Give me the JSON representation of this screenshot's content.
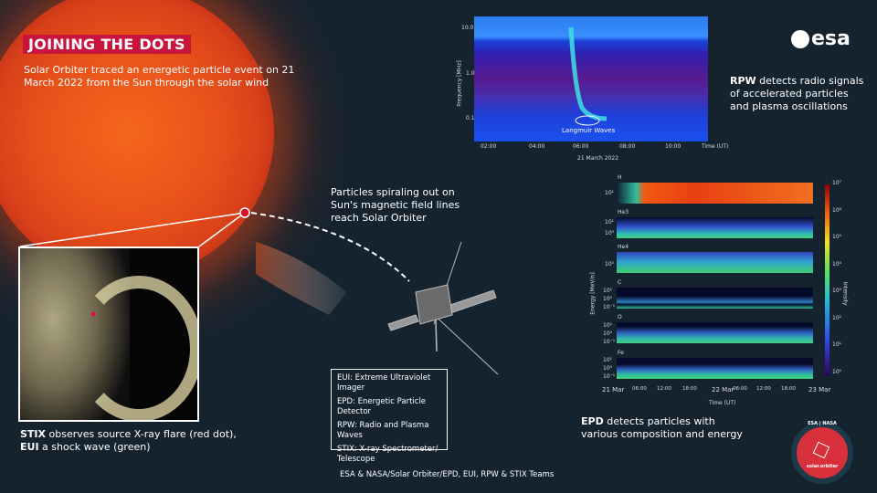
{
  "title": "JOINING THE DOTS",
  "subtitle": "Solar Orbiter traced an energetic particle event on 21 March 2022 from the Sun through the solar wind",
  "logo": "esa",
  "particles_text": "Particles spiraling out on Sun's magnetic field lines reach Solar Orbiter",
  "stix_caption": {
    "bold1": "STIX",
    "rest1": " observes source X-ray flare (red dot),",
    "bold2": "EUI",
    "rest2": " a shock wave (green)"
  },
  "rpw_caption": {
    "bold": "RPW",
    "rest": " detects radio signals of accelerated particles and plasma oscillations"
  },
  "epd_caption": {
    "bold": "EPD",
    "rest": " detects particles with various composition and energy"
  },
  "legend": [
    "EUI: Extreme Ultraviolet Imager",
    "EPD: Energetic Particle Detector",
    "RPW: Radio and Plasma Waves",
    "STIX: X-ray Spectrometer/ Telescope"
  ],
  "credit": "ESA & NASA/Solar Orbiter/EPD, EUI, RPW & STIX Teams",
  "badge": {
    "top": "ESA | NASA",
    "bottom": "solar.orbiter"
  },
  "colors": {
    "title_bg": "#c8143c",
    "background": "#15232f",
    "flare_dot": "#e0102a"
  },
  "chart_data": [
    {
      "type": "heatmap",
      "ylabel": "Frequency [MHz]",
      "xlabel": "21 March 2022",
      "x_axis_title": "Time (UT)",
      "yscale": "log",
      "yticks": [
        "10.0",
        "1.0",
        "0.1"
      ],
      "xticks": [
        "02:00",
        "04:00",
        "06:00",
        "08:00",
        "10:00"
      ],
      "annotation": "Langmuir Waves"
    },
    {
      "type": "heatmap",
      "ylabel": "Energy [MeV/n]",
      "xlabel": "Time (UT)",
      "colorbar_label": "Intensity",
      "panels": [
        {
          "name": "H",
          "yticks": [
            "10¹"
          ]
        },
        {
          "name": "He3",
          "yticks": [
            "10¹",
            "10⁰"
          ]
        },
        {
          "name": "He4",
          "yticks": [
            "10⁰"
          ]
        },
        {
          "name": "C",
          "yticks": [
            "10¹",
            "10⁰",
            "10⁻¹"
          ]
        },
        {
          "name": "O",
          "yticks": [
            "10¹",
            "10⁰",
            "10⁻¹"
          ]
        },
        {
          "name": "Fe",
          "yticks": [
            "10¹",
            "10⁰",
            "10⁻¹"
          ]
        }
      ],
      "xticks": [
        "21 Mar",
        "06:00",
        "12:00",
        "18:00",
        "22 Mar",
        "06:00",
        "12:00",
        "18:00",
        "23 Mar"
      ],
      "colorbar_ticks": [
        "10⁷",
        "10⁶",
        "10⁵",
        "10⁴",
        "10³",
        "10²",
        "10¹",
        "10⁰"
      ]
    }
  ]
}
